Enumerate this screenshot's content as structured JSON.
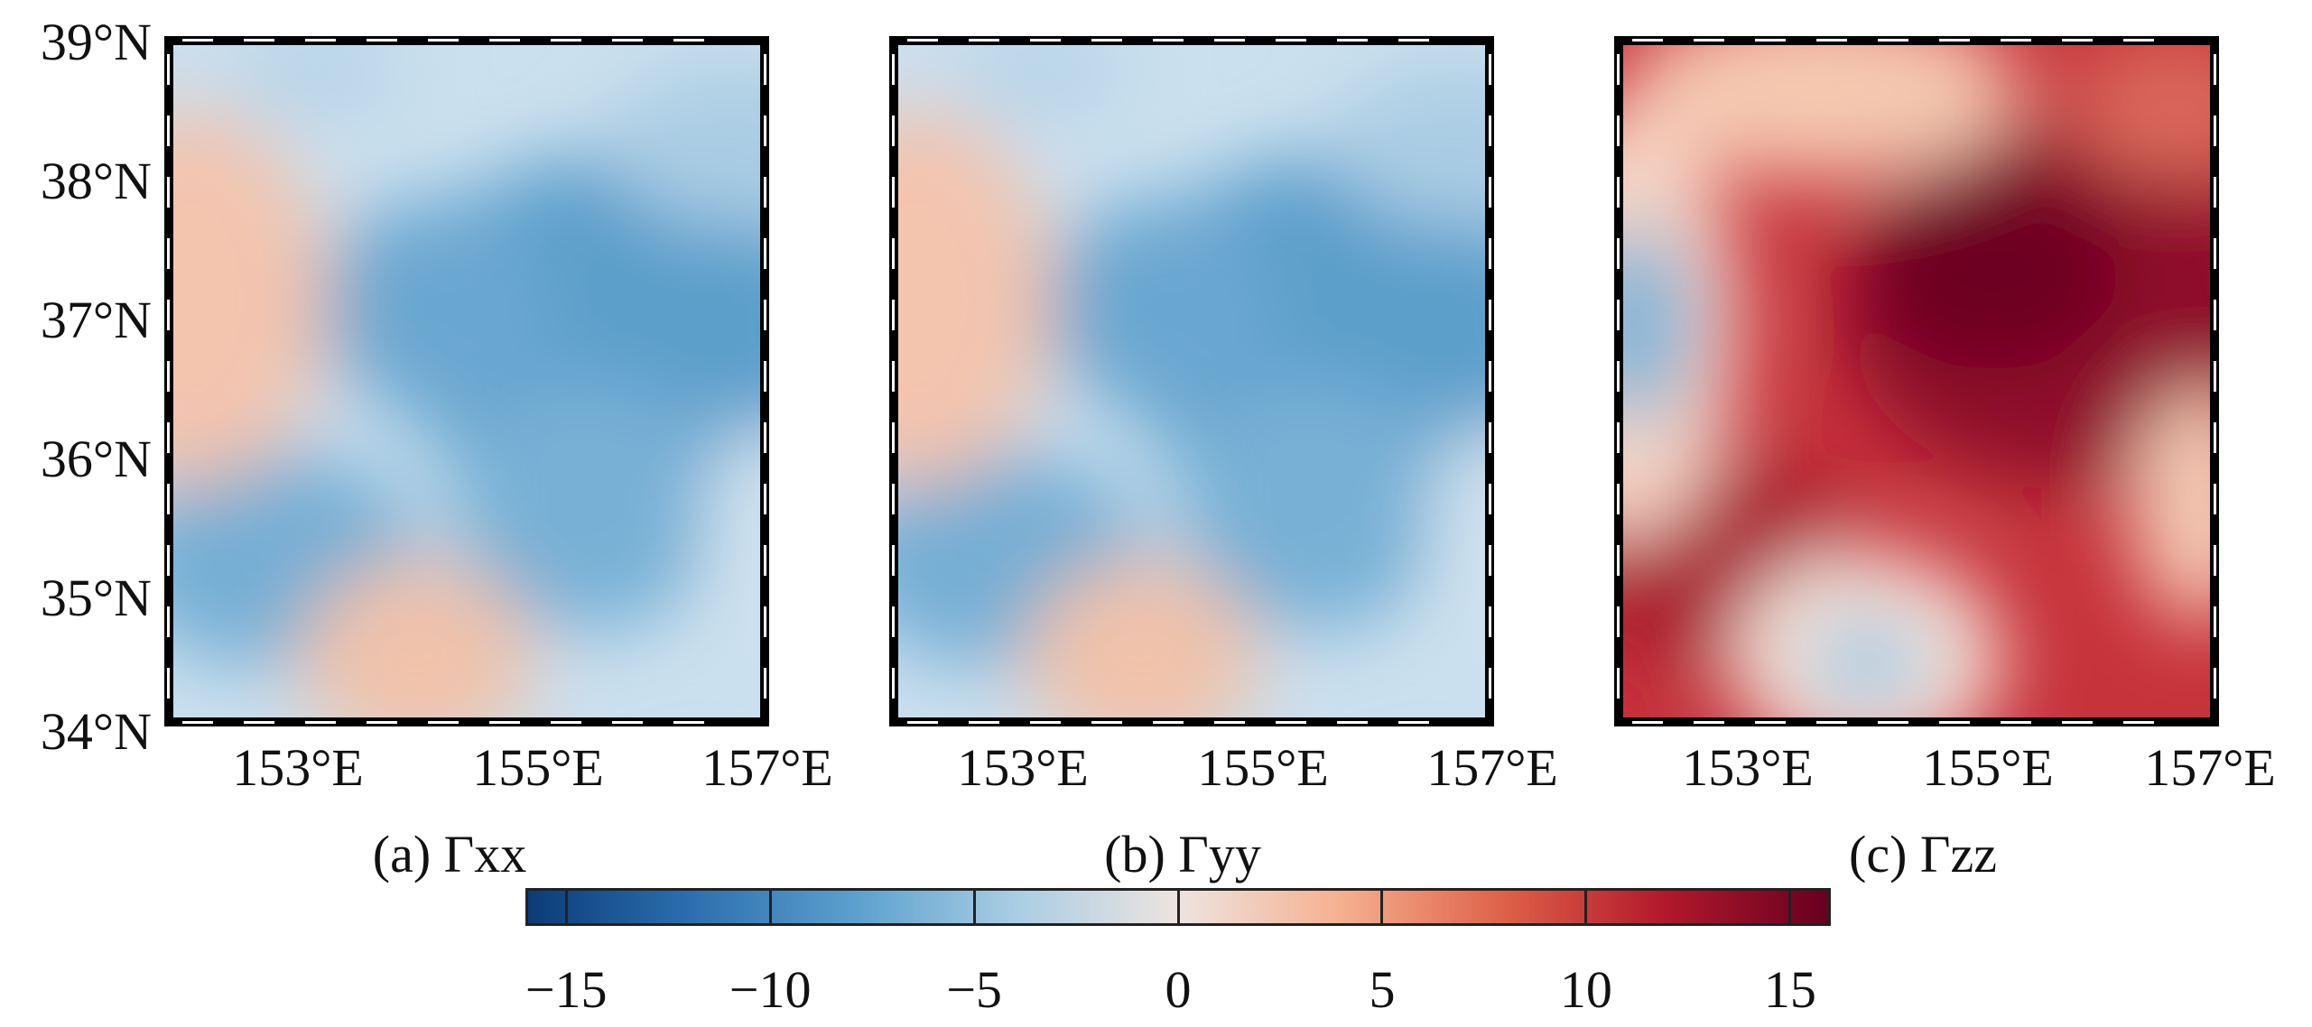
{
  "y_labels": [
    "39°N",
    "38°N",
    "37°N",
    "36°N",
    "35°N",
    "34°N"
  ],
  "x_labels": [
    "153°E",
    "155°E",
    "157°E"
  ],
  "panels": [
    {
      "caption": "(a) Γxx",
      "scheme": "xx"
    },
    {
      "caption": "(b) Γyy",
      "scheme": "yy"
    },
    {
      "caption": "(c) Γzz",
      "scheme": "zz"
    }
  ],
  "colorbar": {
    "ticks": [
      "−15",
      "−10",
      "−5",
      "0",
      "5",
      "10",
      "15"
    ],
    "range": [
      -16,
      16
    ],
    "tick_values": [
      -15,
      -10,
      -5,
      0,
      5,
      10,
      15
    ],
    "colormap": [
      "#0b3c78",
      "#2c6fae",
      "#5aa0cd",
      "#a9cde3",
      "#ede4df",
      "#f5b090",
      "#de6149",
      "#b2182b",
      "#67001f"
    ]
  }
}
